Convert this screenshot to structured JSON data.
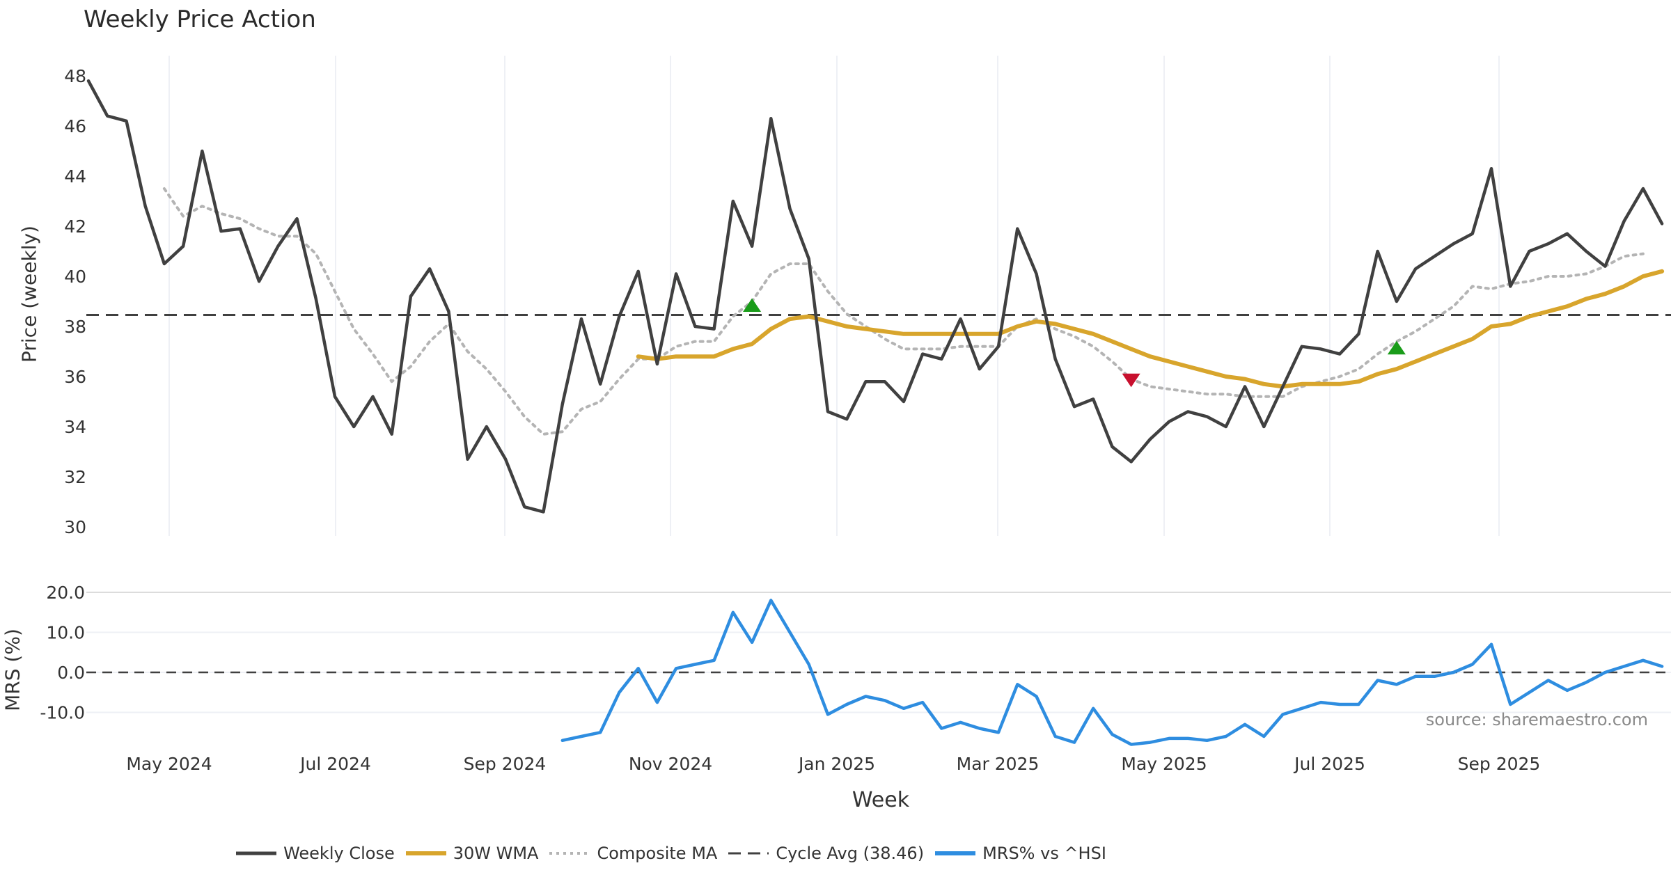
{
  "title": "Weekly Price Action",
  "source_text": "source: sharemaestro.com",
  "chart_data": [
    {
      "type": "line",
      "title": "Weekly Price Action",
      "ylabel": "Price (weekly)",
      "xlabel": "Week",
      "ylim": [
        30,
        48
      ],
      "yticks": [
        30,
        32,
        34,
        36,
        38,
        40,
        42,
        44,
        46,
        48
      ],
      "xticks": [
        "May 2024",
        "Jul 2024",
        "Sep 2024",
        "Nov 2024",
        "Jan 2025",
        "Mar 2025",
        "May 2025",
        "Jul 2025",
        "Sep 2025"
      ],
      "x_start_index": 0,
      "series": [
        {
          "name": "Weekly Close",
          "color": "#404040",
          "start": 0,
          "values": [
            47.8,
            46.4,
            46.2,
            42.8,
            40.5,
            41.2,
            45.0,
            41.8,
            41.9,
            39.8,
            41.2,
            42.3,
            39.1,
            35.2,
            34.0,
            35.2,
            33.7,
            39.2,
            40.3,
            38.6,
            32.7,
            34.0,
            32.7,
            30.8,
            30.6,
            34.9,
            38.3,
            35.7,
            38.4,
            40.2,
            36.5,
            40.1,
            38.0,
            37.9,
            43.0,
            41.2,
            46.3,
            42.7,
            40.7,
            34.6,
            34.3,
            35.8,
            35.8,
            35.0,
            36.9,
            36.7,
            38.3,
            36.3,
            37.2,
            41.9,
            40.1,
            36.7,
            34.8,
            35.1,
            33.2,
            32.6,
            33.5,
            34.2,
            34.6,
            34.4,
            34.0,
            35.6,
            34.0,
            35.6,
            37.2,
            37.1,
            36.9,
            37.7,
            41.0,
            39.0,
            40.3,
            40.8,
            41.3,
            41.7,
            44.3,
            39.6,
            41.0,
            41.3,
            41.7,
            41.0,
            40.4,
            42.2,
            43.5,
            42.1
          ]
        },
        {
          "name": "30W WMA",
          "color": "#d8a52c",
          "start": 29,
          "values": [
            36.8,
            36.7,
            36.8,
            36.8,
            36.8,
            37.1,
            37.3,
            37.9,
            38.3,
            38.4,
            38.2,
            38.0,
            37.9,
            37.8,
            37.7,
            37.7,
            37.7,
            37.7,
            37.7,
            37.7,
            38.0,
            38.2,
            38.1,
            37.9,
            37.7,
            37.4,
            37.1,
            36.8,
            36.6,
            36.4,
            36.2,
            36.0,
            35.9,
            35.7,
            35.6,
            35.7,
            35.7,
            35.7,
            35.8,
            36.1,
            36.3,
            36.6,
            36.9,
            37.2,
            37.5,
            38.0,
            38.1,
            38.4,
            38.6,
            38.8,
            39.1,
            39.3,
            39.6,
            40.0,
            40.2
          ]
        },
        {
          "name": "Composite MA",
          "color": "#b4b4b4",
          "start": 4,
          "values": [
            43.5,
            42.4,
            42.8,
            42.5,
            42.3,
            41.9,
            41.6,
            41.6,
            40.9,
            39.4,
            37.9,
            36.9,
            35.8,
            36.4,
            37.4,
            38.1,
            37.0,
            36.3,
            35.4,
            34.4,
            33.7,
            33.8,
            34.7,
            35.0,
            35.9,
            36.7,
            36.7,
            37.2,
            37.4,
            37.4,
            38.4,
            39.0,
            40.1,
            40.5,
            40.5,
            39.4,
            38.5,
            38.0,
            37.5,
            37.1,
            37.1,
            37.1,
            37.2,
            37.2,
            37.2,
            38.0,
            38.3,
            37.9,
            37.6,
            37.2,
            36.6,
            35.9,
            35.6,
            35.5,
            35.4,
            35.3,
            35.3,
            35.2,
            35.2,
            35.2,
            35.6,
            35.8,
            36.0,
            36.3,
            36.9,
            37.4,
            37.8,
            38.3,
            38.8,
            39.6,
            39.5,
            39.7,
            39.8,
            40.0,
            40.0,
            40.1,
            40.4,
            40.8,
            40.9
          ]
        }
      ],
      "hlines": [
        {
          "name": "Cycle Avg (38.46)",
          "value": 38.46,
          "color": "#404040",
          "style": "dashed"
        }
      ],
      "markers": [
        {
          "type": "buy",
          "index": 35,
          "value": 38.8,
          "color": "#1a9c1a"
        },
        {
          "type": "sell",
          "index": 55,
          "value": 35.9,
          "color": "#c8102e"
        },
        {
          "type": "buy",
          "index": 69,
          "value": 37.1,
          "color": "#1a9c1a"
        }
      ]
    },
    {
      "type": "line",
      "ylabel": "MRS (%)",
      "ylim": [
        -20,
        20
      ],
      "yticks": [
        "20.0",
        "10.0",
        "0.0",
        "-10.0"
      ],
      "ytick_values": [
        20,
        10,
        0,
        -10
      ],
      "series": [
        {
          "name": "MRS% vs ^HSI",
          "color": "#2e8de0",
          "start": 25,
          "values": [
            -17.0,
            -16.0,
            -15.0,
            -5.0,
            1.0,
            -7.5,
            1.0,
            2.0,
            3.0,
            15.0,
            7.5,
            18.0,
            10.0,
            2.0,
            -10.5,
            -8.0,
            -6.0,
            -7.0,
            -9.0,
            -7.5,
            -14.0,
            -12.5,
            -14.0,
            -15.0,
            -3.0,
            -6.0,
            -16.0,
            -17.5,
            -9.0,
            -15.5,
            -18.0,
            -17.5,
            -16.5,
            -16.5,
            -17.0,
            -16.0,
            -13.0,
            -16.0,
            -10.5,
            -9.0,
            -7.5,
            -8.0,
            -8.0,
            -2.0,
            -3.0,
            -1.0,
            -1.0,
            0.0,
            2.0,
            7.0,
            -8.0,
            -5.0,
            -2.0,
            -4.5,
            -2.5,
            0.0,
            1.5,
            3.0,
            1.5
          ]
        }
      ],
      "hlines": [
        {
          "value": 0,
          "color": "#404040",
          "style": "dashed"
        }
      ]
    }
  ],
  "legend": [
    {
      "label": "Weekly Close",
      "color": "#404040",
      "style": "solid"
    },
    {
      "label": "30W WMA",
      "color": "#d8a52c",
      "style": "solid"
    },
    {
      "label": "Composite MA",
      "color": "#b4b4b4",
      "style": "dotted"
    },
    {
      "label": "Cycle Avg (38.46)",
      "color": "#404040",
      "style": "dashed"
    },
    {
      "label": "MRS% vs ^HSI",
      "color": "#2e8de0",
      "style": "solid"
    }
  ]
}
